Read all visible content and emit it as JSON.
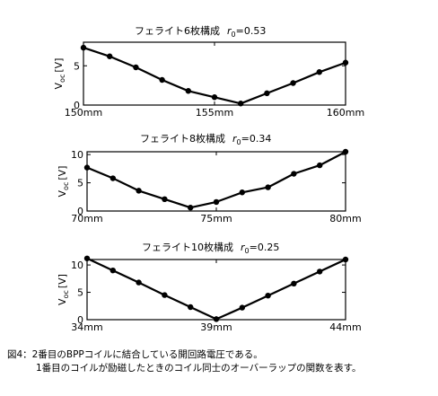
{
  "chart_data": [
    {
      "type": "line",
      "title_main": "フェライト6枚構成",
      "title_r": "r",
      "title_sub": "0",
      "title_value": "=0.53",
      "ylabel_main": "V",
      "ylabel_sub": "oc",
      "ylabel_unit": "[V]",
      "ylim": [
        0,
        8
      ],
      "xlim": [
        150,
        160
      ],
      "xticks": [
        {
          "value": 150,
          "label": "150mm"
        },
        {
          "value": 155,
          "label": "155mm"
        },
        {
          "value": 160,
          "label": "160mm"
        }
      ],
      "yticks": [
        {
          "value": 0,
          "label": "0"
        },
        {
          "value": 5,
          "label": "5"
        }
      ],
      "x": [
        150,
        151,
        152,
        153,
        154,
        155,
        156,
        157,
        158,
        159,
        160
      ],
      "values": [
        7.3,
        6.2,
        4.8,
        3.2,
        1.8,
        1.0,
        0.2,
        1.5,
        2.8,
        4.2,
        5.4
      ],
      "grid": false
    },
    {
      "type": "line",
      "title_main": "フェライト8枚構成",
      "title_r": "r",
      "title_sub": "0",
      "title_value": "=0.34",
      "ylabel_main": "V",
      "ylabel_sub": "oc",
      "ylabel_unit": "[V]",
      "ylim": [
        0,
        10.5
      ],
      "xlim": [
        70,
        80
      ],
      "xticks": [
        {
          "value": 70,
          "label": "70mm"
        },
        {
          "value": 75,
          "label": "75mm"
        },
        {
          "value": 80,
          "label": "80mm"
        }
      ],
      "yticks": [
        {
          "value": 0,
          "label": "0"
        },
        {
          "value": 5,
          "label": "5"
        },
        {
          "value": 10,
          "label": "10"
        }
      ],
      "x": [
        70,
        71,
        72,
        73,
        74,
        75,
        76,
        77,
        78,
        79,
        80
      ],
      "values": [
        7.7,
        5.8,
        3.6,
        2.1,
        0.6,
        1.6,
        3.3,
        4.2,
        6.6,
        8.1,
        10.5
      ],
      "grid": false
    },
    {
      "type": "line",
      "title_main": "フェライト10枚構成",
      "title_r": "r",
      "title_sub": "0",
      "title_value": "=0.25",
      "ylabel_main": "V",
      "ylabel_sub": "oc",
      "ylabel_unit": "[V]",
      "ylim": [
        0,
        11
      ],
      "xlim": [
        34,
        44
      ],
      "xticks": [
        {
          "value": 34,
          "label": "34mm"
        },
        {
          "value": 39,
          "label": "39mm"
        },
        {
          "value": 44,
          "label": "44mm"
        }
      ],
      "yticks": [
        {
          "value": 0,
          "label": "0"
        },
        {
          "value": 5,
          "label": "5"
        },
        {
          "value": 10,
          "label": "10"
        }
      ],
      "x": [
        34,
        35,
        36,
        37,
        38,
        39,
        40,
        41,
        42,
        43,
        44
      ],
      "values": [
        11.2,
        9.0,
        6.8,
        4.5,
        2.3,
        0.1,
        2.2,
        4.4,
        6.6,
        8.8,
        11.0
      ],
      "grid": false
    }
  ],
  "caption": {
    "line1": "図4：2番目のBPPコイルに結合している開回路電圧である。",
    "line2": "1番目のコイルが励磁したときのコイル同士のオーバーラップの関数を表す。"
  }
}
